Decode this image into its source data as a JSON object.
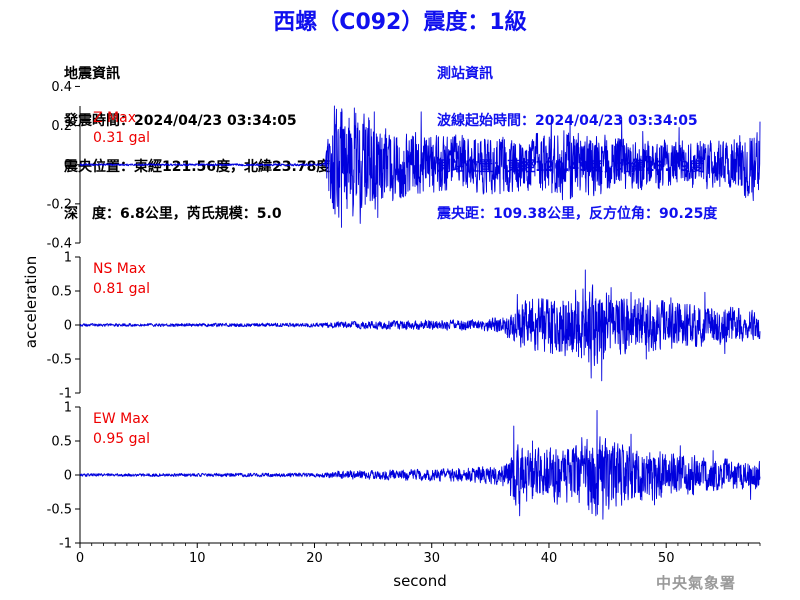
{
  "title": "西螺（C092）震度：1級",
  "quake_info": {
    "heading": "地震資訊",
    "origin_time": "發震時間：2024/04/23 03:34:05",
    "epicenter": "震央位置：東經121.56度，北緯23.78度",
    "depth_magnitude": "深　度：6.8公里，芮氏規模：5.0"
  },
  "station_info": {
    "heading": "測站資訊",
    "wave_start": "波線起始時間：2024/04/23 03:34:05",
    "station_location": "測站位置：東經120.49度，北緯23.79度",
    "distance": "震央距：109.38公里，反方位角：90.25度"
  },
  "organization": "中央氣象署",
  "colors": {
    "trace": "#0000dd",
    "max_label": "#ee0000",
    "title": "#1010ee",
    "axis": "#000000"
  },
  "chart_data": [
    {
      "type": "line",
      "component": "Z",
      "max_label": "Z Max",
      "max_value": "0.31 gal",
      "ylim": [
        -0.4,
        0.3
      ],
      "yticks": [
        -0.4,
        -0.2,
        0,
        0.2,
        0.4
      ],
      "ytick_labels": [
        "-0.4",
        "-0.2",
        "0",
        "0.2",
        "0.4"
      ],
      "envelope": [
        {
          "t": 0,
          "a": 0.005
        },
        {
          "t": 20.8,
          "a": 0.006
        },
        {
          "t": 21.0,
          "a": 0.08
        },
        {
          "t": 21.6,
          "a": 0.28
        },
        {
          "t": 23.0,
          "a": 0.3
        },
        {
          "t": 26,
          "a": 0.2
        },
        {
          "t": 29,
          "a": 0.16
        },
        {
          "t": 33,
          "a": 0.15
        },
        {
          "t": 38,
          "a": 0.15
        },
        {
          "t": 41,
          "a": 0.18
        },
        {
          "t": 45,
          "a": 0.15
        },
        {
          "t": 50,
          "a": 0.13
        },
        {
          "t": 55,
          "a": 0.12
        },
        {
          "t": 58,
          "a": 0.2
        }
      ],
      "peaks": [
        {
          "t": 21.7,
          "v": 0.3
        },
        {
          "t": 22.3,
          "v": -0.32
        },
        {
          "t": 23.4,
          "v": 0.29
        },
        {
          "t": 23.9,
          "v": -0.3
        },
        {
          "t": 25.1,
          "v": 0.27
        },
        {
          "t": 25.4,
          "v": -0.27
        },
        {
          "t": 29.1,
          "v": 0.27
        },
        {
          "t": 32.6,
          "v": 0.15
        },
        {
          "t": 40.2,
          "v": 0.23
        },
        {
          "t": 41.8,
          "v": 0.24
        },
        {
          "t": 46.2,
          "v": 0.24
        },
        {
          "t": 48.0,
          "v": 0.17
        },
        {
          "t": 51.1,
          "v": 0.19
        },
        {
          "t": 58.0,
          "v": 0.22
        },
        {
          "t": 57.3,
          "v": -0.14
        }
      ]
    },
    {
      "type": "line",
      "component": "NS",
      "max_label": "NS Max",
      "max_value": "0.81 gal",
      "ylim": [
        -1,
        1
      ],
      "yticks": [
        -1,
        -0.5,
        0,
        0.5,
        1
      ],
      "ytick_labels": [
        "-1",
        "-0.5",
        "0",
        "0.5",
        "1"
      ],
      "envelope": [
        {
          "t": 0,
          "a": 0.02
        },
        {
          "t": 20.5,
          "a": 0.03
        },
        {
          "t": 22,
          "a": 0.05
        },
        {
          "t": 28,
          "a": 0.07
        },
        {
          "t": 34,
          "a": 0.08
        },
        {
          "t": 36,
          "a": 0.12
        },
        {
          "t": 37.5,
          "a": 0.35
        },
        {
          "t": 40,
          "a": 0.4
        },
        {
          "t": 42.5,
          "a": 0.55
        },
        {
          "t": 44,
          "a": 0.6
        },
        {
          "t": 46,
          "a": 0.45
        },
        {
          "t": 50,
          "a": 0.35
        },
        {
          "t": 54,
          "a": 0.3
        },
        {
          "t": 58,
          "a": 0.2
        }
      ],
      "peaks": [
        {
          "t": 37.3,
          "v": 0.45
        },
        {
          "t": 38.6,
          "v": 0.38
        },
        {
          "t": 40.3,
          "v": -0.42
        },
        {
          "t": 43.1,
          "v": 0.81
        },
        {
          "t": 43.6,
          "v": -0.78
        },
        {
          "t": 44.5,
          "v": -0.82
        },
        {
          "t": 45.3,
          "v": 0.55
        },
        {
          "t": 47.0,
          "v": 0.48
        },
        {
          "t": 48.3,
          "v": -0.5
        },
        {
          "t": 50.4,
          "v": 0.4
        },
        {
          "t": 53.3,
          "v": 0.48
        },
        {
          "t": 55.0,
          "v": -0.42
        }
      ]
    },
    {
      "type": "line",
      "component": "EW",
      "max_label": "EW Max",
      "max_value": "0.95 gal",
      "ylim": [
        -1,
        1
      ],
      "yticks": [
        -1,
        -0.5,
        0,
        0.5,
        1
      ],
      "ytick_labels": [
        "-1",
        "-0.5",
        "0",
        "0.5",
        "1"
      ],
      "envelope": [
        {
          "t": 0,
          "a": 0.02
        },
        {
          "t": 20.5,
          "a": 0.03
        },
        {
          "t": 22,
          "a": 0.06
        },
        {
          "t": 28,
          "a": 0.08
        },
        {
          "t": 33,
          "a": 0.1
        },
        {
          "t": 36,
          "a": 0.15
        },
        {
          "t": 37.2,
          "a": 0.45
        },
        {
          "t": 39,
          "a": 0.4
        },
        {
          "t": 42,
          "a": 0.4
        },
        {
          "t": 44,
          "a": 0.6
        },
        {
          "t": 46,
          "a": 0.45
        },
        {
          "t": 50,
          "a": 0.35
        },
        {
          "t": 54,
          "a": 0.25
        },
        {
          "t": 58,
          "a": 0.2
        }
      ],
      "peaks": [
        {
          "t": 37.0,
          "v": 0.72
        },
        {
          "t": 37.5,
          "v": -0.6
        },
        {
          "t": 38.6,
          "v": 0.5
        },
        {
          "t": 40.7,
          "v": -0.43
        },
        {
          "t": 42.8,
          "v": 0.55
        },
        {
          "t": 44.1,
          "v": 0.95
        },
        {
          "t": 44.6,
          "v": -0.65
        },
        {
          "t": 47.0,
          "v": 0.6
        },
        {
          "t": 49.0,
          "v": -0.44
        },
        {
          "t": 51.2,
          "v": 0.43
        },
        {
          "t": 54.0,
          "v": 0.36
        },
        {
          "t": 57.2,
          "v": -0.36
        }
      ]
    }
  ],
  "x_axis": {
    "label": "second",
    "xlim": [
      0,
      58
    ],
    "ticks": [
      0,
      10,
      20,
      30,
      40,
      50
    ],
    "tick_labels": [
      "0",
      "10",
      "20",
      "30",
      "40",
      "50"
    ]
  },
  "y_axis_label": "acceleration"
}
